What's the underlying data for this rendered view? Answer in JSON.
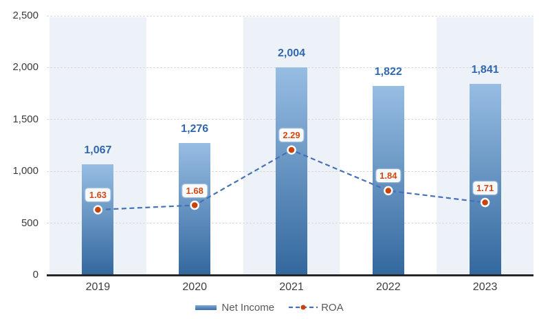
{
  "chart_data": {
    "type": "bar",
    "subtype": "combo-bar-line",
    "title": "",
    "categories": [
      "2019",
      "2020",
      "2021",
      "2022",
      "2023"
    ],
    "series": [
      {
        "name": "Net Income",
        "type": "bar",
        "values": [
          1067,
          1276,
          2004,
          1822,
          1841
        ],
        "labels": [
          "1,067",
          "1,276",
          "2,004",
          "1,822",
          "1,841"
        ]
      },
      {
        "name": "ROA",
        "type": "line",
        "values": [
          1.63,
          1.68,
          2.29,
          1.84,
          1.71
        ],
        "labels": [
          "1.63",
          "1.68",
          "2.29",
          "1.84",
          "1.71"
        ]
      }
    ],
    "y_axis": {
      "ticks": [
        "0",
        "500",
        "1,000",
        "1,500",
        "2,000",
        "2,500"
      ],
      "tick_values": [
        0,
        500,
        1000,
        1500,
        2000,
        2500
      ],
      "ylim": [
        0,
        2500
      ]
    },
    "roa_axis": {
      "visible": false,
      "ylim": [
        0.91,
        3.77
      ]
    },
    "grid": "horizontal-dashed",
    "plot_bands": "alternating light-blue column bands behind odd categories",
    "legend_position": "bottom-center"
  },
  "colors": {
    "background": "#ffffff",
    "band": "#edf2f8",
    "gridline": "#d9d9d9",
    "axis_line": "#262626",
    "bar_gradient_top": "#97bde3",
    "bar_gradient_bottom": "#33689e",
    "bar_label": "#2f67b1",
    "roa_line": "#4470b8",
    "roa_point": "#c8430a",
    "roa_point_ring": "#ffffff",
    "roa_label": "#d2480f",
    "tick_label": "#3a3a3a",
    "category_label": "#3d3d3d",
    "legend_text": "#595959",
    "legend_swatch_top": "#7fa9d6",
    "legend_swatch_bottom": "#3a6ea8"
  }
}
